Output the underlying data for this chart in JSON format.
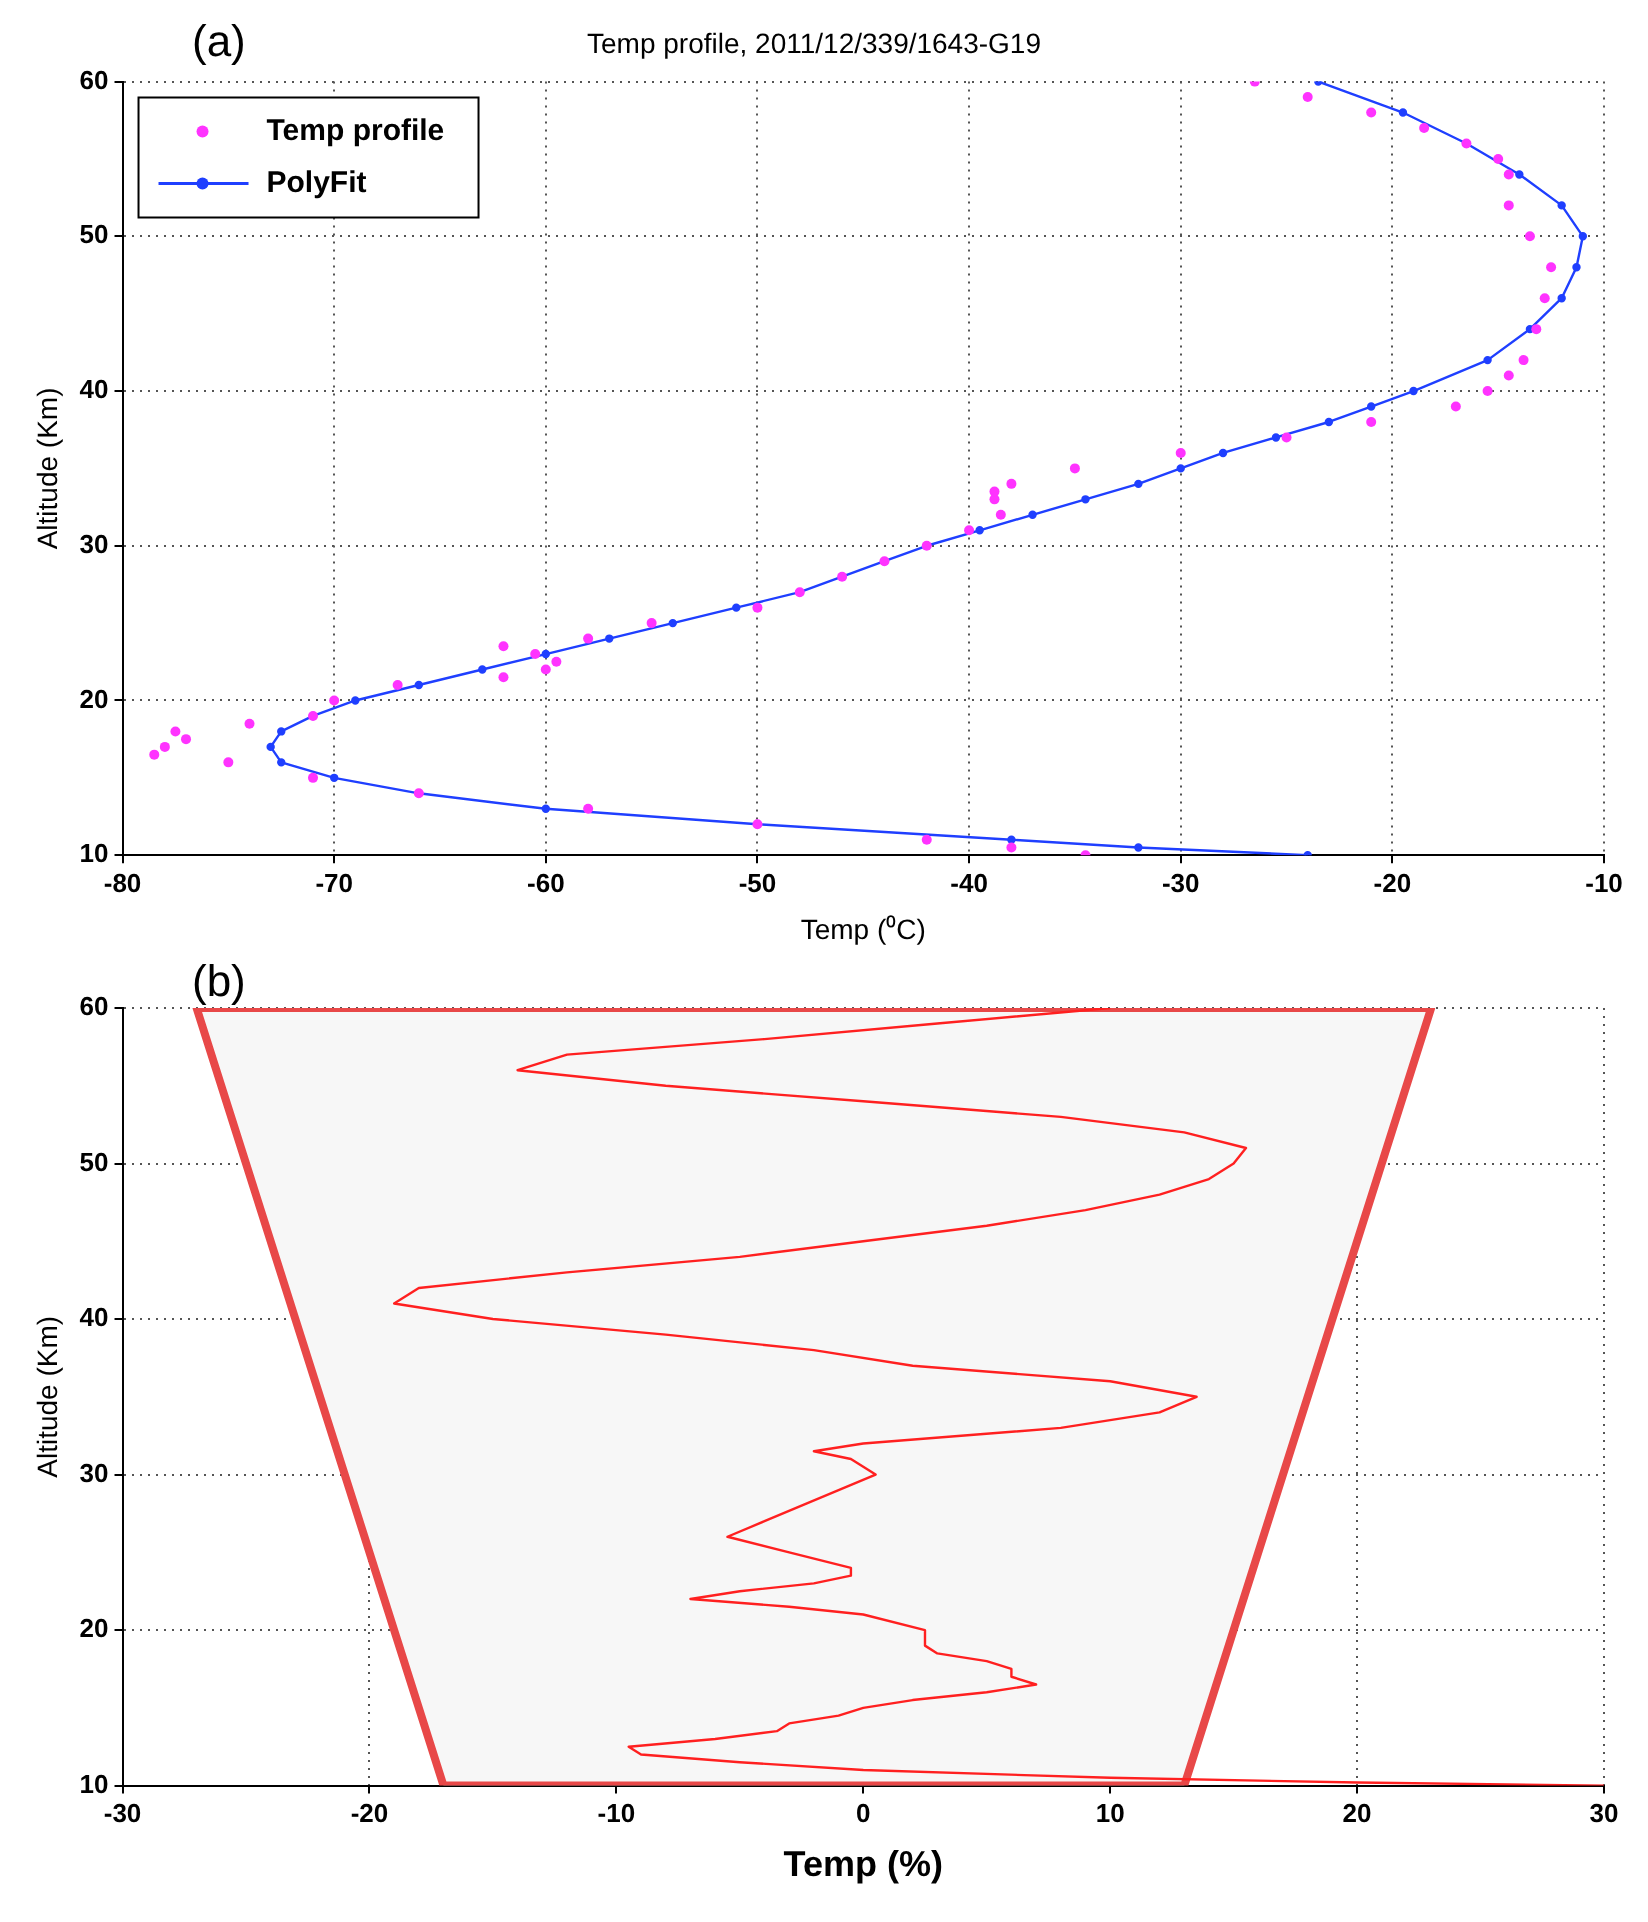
{
  "chart_data": [
    {
      "type": "line",
      "title": "Temp profile, 2011/12/339/1643-G19",
      "xlabel": "Temp (⁰C)",
      "ylabel": "Altitude (Km)",
      "annotations": [
        "(a)"
      ],
      "xlim": [
        -80,
        -10
      ],
      "xticks": [
        -80,
        -70,
        -60,
        -50,
        -40,
        -30,
        -20,
        -10
      ],
      "ylim": [
        10,
        60
      ],
      "yticks": [
        10,
        20,
        30,
        40,
        50,
        60
      ],
      "grid": true,
      "legend": "top left",
      "marker": "circle",
      "series": [
        {
          "name": "Temp profile",
          "type": "scatter",
          "color": "#ff33ff",
          "x": [
            -34.5,
            -38,
            -42,
            -50,
            -58,
            -66,
            -71,
            -75,
            -78.5,
            -78,
            -77,
            -77.5,
            -74,
            -71,
            -70,
            -67,
            -62,
            -60,
            -59.5,
            -60.5,
            -62,
            -58,
            -55,
            -50,
            -48,
            -46,
            -44,
            -42,
            -40,
            -38.5,
            -38.8,
            -38.8,
            -38,
            -35,
            -30,
            -25,
            -21,
            -17,
            -15.5,
            -14.5,
            -13.8,
            -13.2,
            -12.8,
            -12.5,
            -13.5,
            -14.5,
            -14.5,
            -15,
            -16.5,
            -18.5,
            -21,
            -24,
            -26.5
          ],
          "values": [
            10,
            10.5,
            11,
            12,
            13,
            14,
            15,
            16,
            16.5,
            17,
            17.5,
            18,
            18.5,
            19,
            20,
            21,
            21.5,
            22,
            22.5,
            23,
            23.5,
            24,
            25,
            26,
            27,
            28,
            29,
            30,
            31,
            32,
            33,
            33.5,
            34,
            35,
            36,
            37,
            38,
            39,
            40,
            41,
            42,
            44,
            46,
            48,
            50,
            52,
            54,
            55,
            56,
            57,
            58,
            59,
            60
          ]
        },
        {
          "name": "PolyFit",
          "type": "line",
          "color": "#1f3fff",
          "x": [
            -24,
            -32,
            -38,
            -50,
            -60,
            -66,
            -70,
            -72.5,
            -73,
            -72.5,
            -71,
            -69,
            -66,
            -63,
            -60,
            -57,
            -54,
            -51,
            -48,
            -46,
            -44,
            -42,
            -39.5,
            -37,
            -34.5,
            -32,
            -30,
            -28,
            -25.5,
            -23,
            -21,
            -19,
            -15.5,
            -13.5,
            -12,
            -11.3,
            -11,
            -12,
            -14,
            -16.5,
            -19.5,
            -23.5
          ],
          "values": [
            10,
            10.5,
            11,
            12,
            13,
            14,
            15,
            16,
            17,
            18,
            19,
            20,
            21,
            22,
            23,
            24,
            25,
            26,
            27,
            28,
            29,
            30,
            31,
            32,
            33,
            34,
            35,
            36,
            37,
            38,
            39,
            40,
            42,
            44,
            46,
            48,
            50,
            52,
            54,
            56,
            58,
            60
          ]
        }
      ]
    },
    {
      "type": "line",
      "xlabel": "Temp (%)",
      "ylabel": "Altitude (Km)",
      "annotations": [
        "(b)"
      ],
      "xlim": [
        -30,
        30
      ],
      "xticks": [
        -30,
        -20,
        -10,
        0,
        10,
        20,
        30
      ],
      "ylim": [
        10,
        60
      ],
      "yticks": [
        10,
        20,
        30,
        40,
        50,
        60
      ],
      "grid": true,
      "series": [
        {
          "type": "area",
          "color": "#f7f7f7",
          "x": [
            -17,
            -27,
            23,
            13,
            -17
          ],
          "values": [
            10,
            60,
            60,
            10,
            10
          ]
        },
        {
          "color": "#ff2020",
          "x": [
            30,
            20,
            10,
            0,
            -5,
            -9,
            -9.5,
            -6,
            -3.5,
            -3,
            -1,
            0,
            2,
            5,
            7,
            6,
            6,
            5,
            3,
            2.5,
            2.5,
            0,
            -3,
            -7,
            -5,
            -2,
            -0.5,
            -0.5,
            -3,
            -5.5,
            -4,
            -2.5,
            -1,
            0.5,
            -0.5,
            -2,
            0,
            8,
            12,
            13.5,
            10,
            2,
            -2,
            -8,
            -15,
            -19,
            -18,
            -12,
            -5,
            0,
            5,
            9,
            12,
            14,
            15,
            15.5,
            13,
            8,
            0,
            -8,
            -14,
            -12,
            -4,
            3,
            10
          ],
          "values": [
            10,
            10.2,
            10.5,
            11,
            11.5,
            12,
            12.5,
            13,
            13.5,
            14,
            14.5,
            15,
            15.5,
            16,
            16.5,
            17,
            17.5,
            18,
            18.5,
            19,
            20,
            21,
            21.5,
            22,
            22.5,
            23,
            23.5,
            24,
            25,
            26,
            27,
            28,
            29,
            30,
            31,
            31.5,
            32,
            33,
            34,
            35,
            36,
            37,
            38,
            39,
            40,
            41,
            42,
            43,
            44,
            45,
            46,
            47,
            48,
            49,
            50,
            51,
            52,
            53,
            54,
            55,
            56,
            57,
            58,
            59,
            60
          ]
        }
      ]
    }
  ]
}
